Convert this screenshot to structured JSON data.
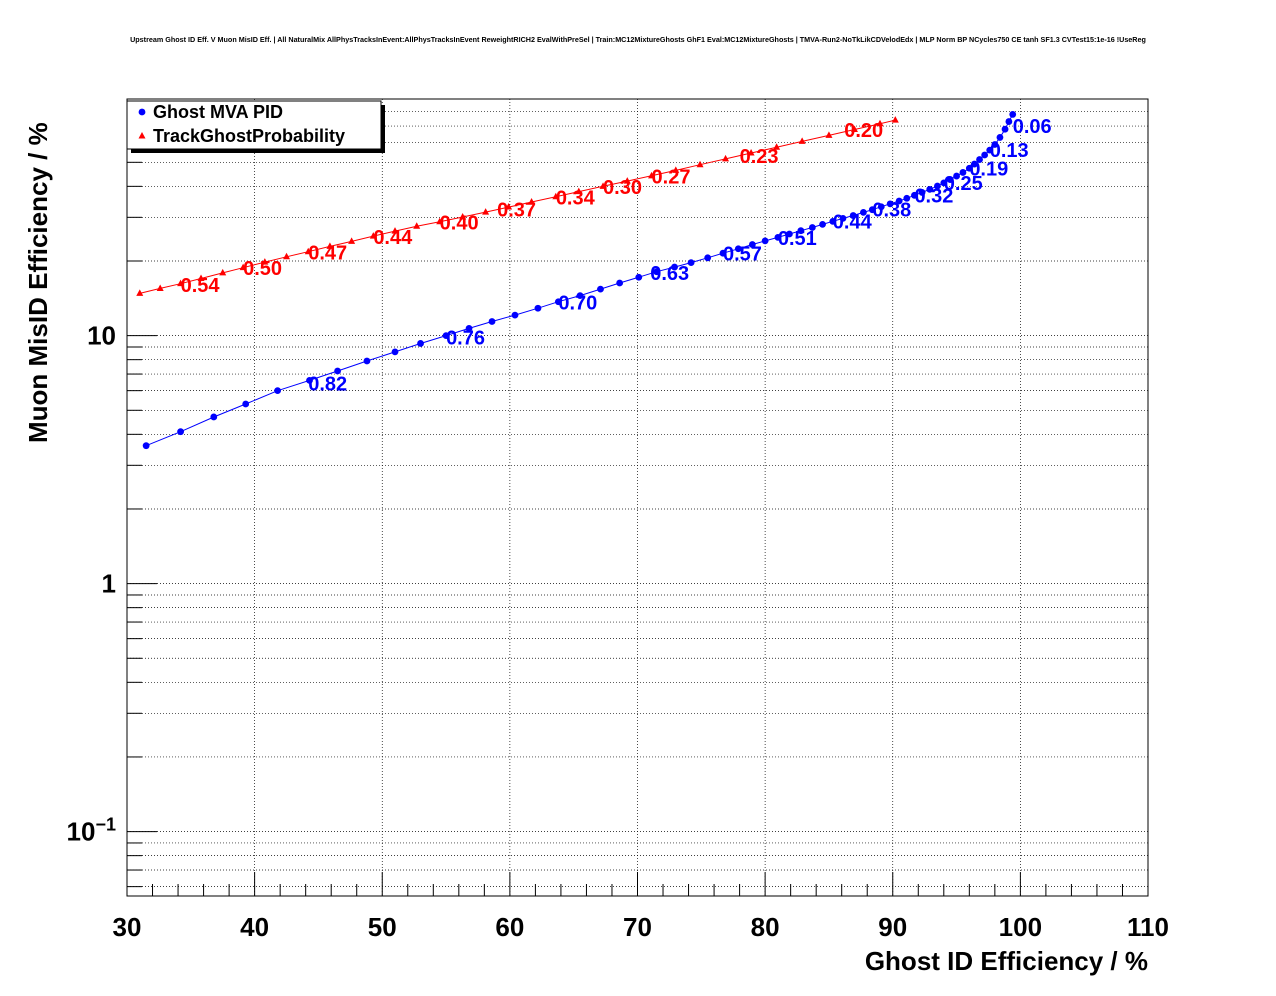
{
  "chart_data": {
    "type": "scatter",
    "title": "Upstream Ghost ID Eff. V Muon MisID Eff. | All NaturalMix AllPhysTracksInEvent:AllPhysTracksInEvent ReweightRICH2 EvalWithPreSel | Train:MC12MixtureGhosts GhF1 Eval:MC12MixtureGhosts | TMVA-Run2-NoTkLikCDVelodEdx | MLP Norm BP NCycles750 CE tanh SF1.3 CVTest15:1e-16 !UseReg",
    "xlabel": "Ghost ID Efficiency / %",
    "ylabel": "Muon MisID Efficiency / %",
    "xlim": [
      30,
      110
    ],
    "ylim": [
      0.055,
      90
    ],
    "y_scale": "log",
    "grid": true,
    "legend_position": "top-left",
    "x_ticks": [
      {
        "value": 30,
        "label": "30"
      },
      {
        "value": 40,
        "label": "40"
      },
      {
        "value": 50,
        "label": "50"
      },
      {
        "value": 60,
        "label": "60"
      },
      {
        "value": 70,
        "label": "70"
      },
      {
        "value": 80,
        "label": "80"
      },
      {
        "value": 90,
        "label": "90"
      },
      {
        "value": 100,
        "label": "100"
      },
      {
        "value": 110,
        "label": "110"
      }
    ],
    "y_ticks": [
      {
        "value": 0.1,
        "base": "10",
        "exp": "−1"
      },
      {
        "value": 1,
        "base": "1",
        "exp": ""
      },
      {
        "value": 10,
        "base": "10",
        "exp": ""
      }
    ],
    "series": [
      {
        "name": "Ghost MVA PID",
        "color": "#0000ff",
        "marker": "circle",
        "x": [
          31.5,
          34.2,
          36.8,
          39.3,
          41.8,
          44.3,
          46.5,
          48.8,
          51.0,
          53.0,
          55.0,
          56.8,
          58.6,
          60.4,
          62.2,
          63.8,
          65.5,
          67.1,
          68.6,
          70.1,
          71.5,
          72.9,
          74.2,
          75.5,
          76.7,
          77.9,
          79.0,
          80.0,
          81.0,
          81.9,
          82.8,
          83.7,
          84.5,
          85.3,
          86.1,
          86.9,
          87.7,
          88.4,
          89.1,
          89.8,
          90.5,
          91.1,
          91.7,
          92.3,
          92.9,
          93.5,
          94.0,
          94.5,
          95.0,
          95.5,
          96.0,
          96.4,
          96.8,
          97.2,
          97.6,
          98.0,
          98.4,
          98.8,
          99.1,
          99.4
        ],
        "y": [
          3.6,
          4.1,
          4.7,
          5.3,
          6.0,
          6.6,
          7.2,
          7.9,
          8.6,
          9.3,
          10.0,
          10.7,
          11.4,
          12.1,
          12.9,
          13.7,
          14.5,
          15.4,
          16.3,
          17.2,
          18.1,
          18.9,
          19.7,
          20.6,
          21.5,
          22.4,
          23.3,
          24.1,
          24.9,
          25.7,
          26.5,
          27.3,
          28.1,
          28.9,
          29.7,
          30.5,
          31.4,
          32.2,
          33.1,
          34.0,
          34.9,
          35.8,
          36.8,
          37.8,
          38.9,
          40.1,
          41.3,
          42.6,
          44.0,
          45.5,
          47.3,
          49.2,
          51.3,
          53.5,
          56.0,
          59.0,
          63.0,
          68.0,
          73.0,
          78.0
        ],
        "labels": [
          {
            "x": 44.2,
            "y": 6.4,
            "text": "0.82"
          },
          {
            "x": 55.0,
            "y": 9.85,
            "text": "0.76"
          },
          {
            "x": 63.8,
            "y": 13.6,
            "text": "0.70"
          },
          {
            "x": 71.0,
            "y": 17.9,
            "text": "0.63"
          },
          {
            "x": 76.7,
            "y": 21.4,
            "text": "0.57"
          },
          {
            "x": 81.0,
            "y": 24.8,
            "text": "0.51"
          },
          {
            "x": 85.3,
            "y": 28.8,
            "text": "0.44"
          },
          {
            "x": 88.4,
            "y": 32.2,
            "text": "0.38"
          },
          {
            "x": 91.7,
            "y": 36.8,
            "text": "0.32"
          },
          {
            "x": 94.0,
            "y": 41.3,
            "text": "0.25"
          },
          {
            "x": 96.0,
            "y": 47.3,
            "text": "0.19"
          },
          {
            "x": 97.6,
            "y": 56.0,
            "text": "0.13"
          },
          {
            "x": 99.4,
            "y": 70.0,
            "text": "0.06"
          }
        ]
      },
      {
        "name": "TrackGhostProbability",
        "color": "#ff0000",
        "marker": "triangle",
        "x": [
          31.0,
          32.6,
          34.2,
          35.8,
          37.5,
          39.1,
          40.8,
          42.5,
          44.2,
          45.9,
          47.6,
          49.3,
          51.0,
          52.7,
          54.5,
          56.3,
          58.1,
          59.9,
          61.7,
          63.6,
          65.4,
          67.3,
          69.2,
          71.1,
          73.0,
          74.9,
          76.9,
          78.9,
          80.9,
          82.9,
          85.0,
          87.0,
          89.0,
          90.2
        ],
        "y": [
          14.8,
          15.5,
          16.2,
          17.0,
          17.9,
          18.8,
          19.8,
          20.8,
          21.8,
          22.9,
          24.0,
          25.2,
          26.4,
          27.6,
          28.8,
          30.1,
          31.5,
          33.0,
          34.6,
          36.3,
          38.1,
          40.0,
          42.0,
          44.1,
          46.4,
          48.9,
          51.6,
          54.5,
          57.5,
          60.7,
          64.2,
          67.8,
          71.5,
          74.0
        ],
        "labels": [
          {
            "x": 34.2,
            "y": 16.0,
            "text": "0.54"
          },
          {
            "x": 39.1,
            "y": 18.7,
            "text": "0.50"
          },
          {
            "x": 44.2,
            "y": 21.6,
            "text": "0.47"
          },
          {
            "x": 49.3,
            "y": 25.0,
            "text": "0.44"
          },
          {
            "x": 54.5,
            "y": 28.6,
            "text": "0.40"
          },
          {
            "x": 59.0,
            "y": 32.2,
            "text": "0.37"
          },
          {
            "x": 63.6,
            "y": 36.1,
            "text": "0.34"
          },
          {
            "x": 67.3,
            "y": 39.8,
            "text": "0.30"
          },
          {
            "x": 71.1,
            "y": 43.9,
            "text": "0.27"
          },
          {
            "x": 78.0,
            "y": 53.0,
            "text": "0.23"
          },
          {
            "x": 86.2,
            "y": 67.5,
            "text": "0.20"
          }
        ]
      }
    ]
  }
}
